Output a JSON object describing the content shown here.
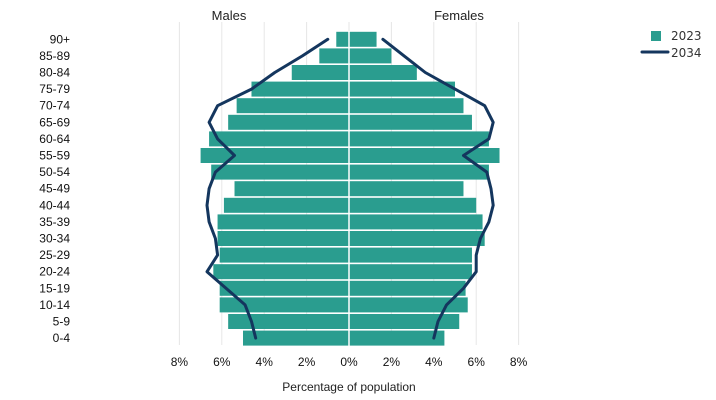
{
  "chart_data": {
    "type": "bar",
    "subtype": "population-pyramid",
    "xlabel": "Percentage of population",
    "side_labels": {
      "left": "Males",
      "right": "Females"
    },
    "x_ticks": [
      "8%",
      "6%",
      "4%",
      "2%",
      "0%",
      "2%",
      "4%",
      "6%",
      "8%"
    ],
    "xlim": [
      -8,
      8
    ],
    "categories": [
      "90+",
      "85-89",
      "80-84",
      "75-79",
      "70-74",
      "65-69",
      "60-64",
      "55-59",
      "50-54",
      "45-49",
      "40-44",
      "35-39",
      "30-34",
      "25-29",
      "20-24",
      "15-19",
      "10-14",
      "5-9",
      "0-4"
    ],
    "series": [
      {
        "name": "2023",
        "kind": "bar",
        "color": "#2a9d8f",
        "males": [
          0.6,
          1.4,
          2.7,
          4.6,
          5.3,
          5.7,
          6.6,
          7.0,
          6.5,
          5.4,
          5.9,
          6.2,
          6.2,
          6.1,
          6.4,
          6.1,
          6.1,
          5.7,
          5.0
        ],
        "females": [
          1.3,
          2.0,
          3.2,
          5.0,
          5.4,
          5.8,
          6.6,
          7.1,
          6.6,
          5.4,
          6.0,
          6.3,
          6.4,
          5.8,
          5.8,
          5.5,
          5.6,
          5.2,
          4.5
        ]
      },
      {
        "name": "2034",
        "kind": "line",
        "color": "#14365e",
        "males": [
          1.0,
          2.2,
          3.5,
          4.6,
          6.2,
          6.6,
          6.2,
          5.4,
          6.3,
          6.6,
          6.7,
          6.6,
          6.3,
          6.2,
          6.7,
          5.8,
          4.9,
          4.6,
          4.4
        ],
        "females": [
          1.6,
          2.6,
          3.6,
          5.0,
          6.4,
          6.8,
          6.6,
          5.4,
          6.5,
          6.7,
          6.8,
          6.6,
          6.2,
          6.0,
          6.0,
          5.4,
          4.6,
          4.2,
          4.0
        ]
      }
    ]
  }
}
